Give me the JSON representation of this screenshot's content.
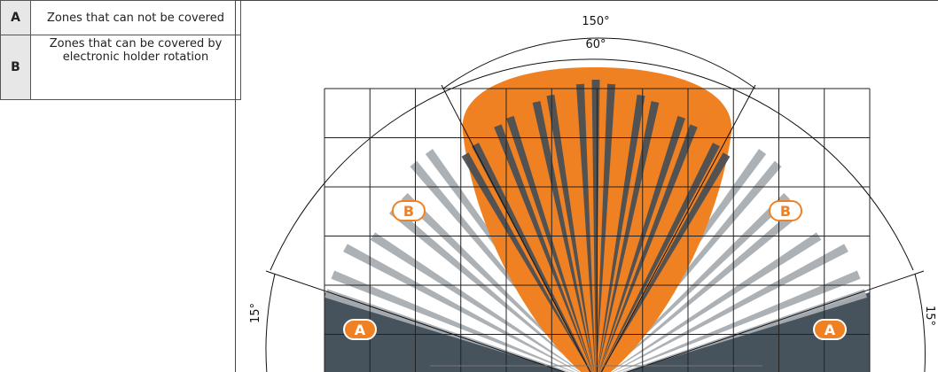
{
  "legend": [
    {
      "key": "A",
      "text": "Zones that can not be covered"
    },
    {
      "key": "B",
      "text": "Zones that can be covered by electronic holder rotation"
    }
  ],
  "angles": {
    "outer_label": "150°",
    "inner_label": "60°",
    "side_left_label": "15°",
    "side_right_label": "15°"
  },
  "markers": {
    "a_left": "A",
    "a_right": "A",
    "b_left": "B",
    "b_right": "B"
  },
  "colors": {
    "orange": "#f08122",
    "dark_zone": "#46525c",
    "dark_beam": "#4a4f55",
    "light_beam": "#a8adb2",
    "grid": "#222222"
  }
}
